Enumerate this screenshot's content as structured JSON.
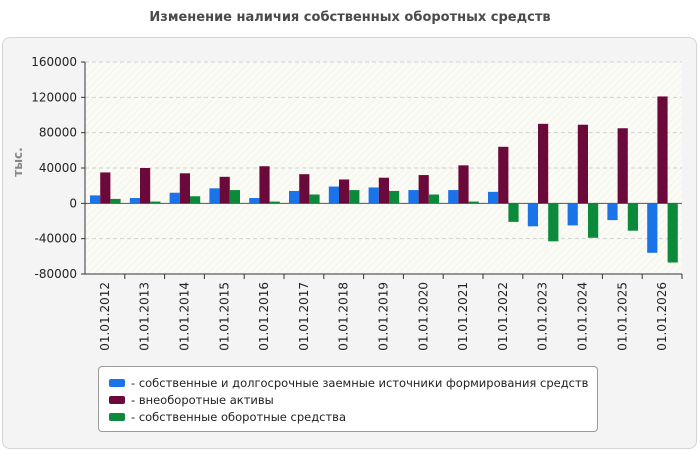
{
  "title": "Изменение наличия собственных оборотных средств",
  "chart_data": {
    "type": "bar",
    "ylabel": "тыс.",
    "xlabel": "",
    "ylim": [
      -80000,
      160000
    ],
    "yticks": [
      160000,
      120000,
      80000,
      40000,
      0,
      -40000,
      -80000
    ],
    "categories": [
      "01.01.2012",
      "01.01.2013",
      "01.01.2014",
      "01.01.2015",
      "01.01.2016",
      "01.01.2017",
      "01.01.2018",
      "01.01.2019",
      "01.01.2020",
      "01.01.2021",
      "01.01.2022",
      "01.01.2023",
      "01.01.2024",
      "01.01.2025",
      "01.01.2026"
    ],
    "series": [
      {
        "name": "собственные и долгосрочные заемные источники формирования средств",
        "color": "#1a73e8",
        "values": [
          9000,
          6000,
          12000,
          17000,
          6000,
          14000,
          19000,
          18000,
          15000,
          15000,
          13000,
          -26000,
          -25000,
          -19000,
          -56000
        ]
      },
      {
        "name": "внеоборотные активы",
        "color": "#6b0a3a",
        "values": [
          35000,
          40000,
          34000,
          30000,
          42000,
          33000,
          27000,
          29000,
          32000,
          43000,
          64000,
          90000,
          89000,
          85000,
          121000
        ]
      },
      {
        "name": "собственные оборотные средства",
        "color": "#0a8a3a",
        "values": [
          5000,
          2000,
          8000,
          15000,
          2000,
          10000,
          15000,
          14000,
          10000,
          2000,
          -21000,
          -43000,
          -39000,
          -31000,
          -67000
        ]
      }
    ],
    "grid": true,
    "legend_position": "bottom"
  }
}
